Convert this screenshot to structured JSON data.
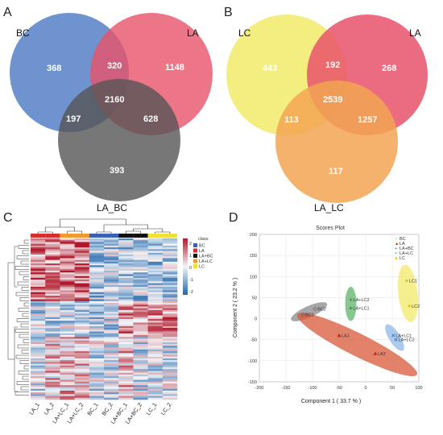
{
  "panels": {
    "a": "A",
    "b": "B",
    "c": "C",
    "d": "D"
  },
  "venn_a": {
    "sets": [
      "BC",
      "LA",
      "LA_BC"
    ],
    "colors": [
      "#4a78c2",
      "#e8526a",
      "#555555"
    ],
    "counts": {
      "only_1": "368",
      "only_2": "1148",
      "only_3": "393",
      "s12": "320",
      "s13": "197",
      "s23": "628",
      "s123": "2160"
    }
  },
  "venn_b": {
    "sets": [
      "LC",
      "LA",
      "LA_LC"
    ],
    "colors": [
      "#f2ea6a",
      "#e8526a",
      "#f2a552"
    ],
    "counts": {
      "only_1": "443",
      "only_2": "268",
      "only_3": "117",
      "s12": "192",
      "s13": "113",
      "s23": "1257",
      "s123": "2539"
    }
  },
  "heatmap": {
    "legend_title": "class",
    "classes": [
      {
        "name": "BC",
        "color": "#3b5fb5"
      },
      {
        "name": "LA",
        "color": "#d62d2d"
      },
      {
        "name": "LA+BC",
        "color": "#111111"
      },
      {
        "name": "LA+LC",
        "color": "#f29a2e"
      },
      {
        "name": "LC",
        "color": "#f2e03a"
      }
    ],
    "scale_ticks": [
      "2",
      "1",
      "0",
      "-1",
      "-2"
    ],
    "columns": [
      "LA_1",
      "LA_2",
      "LA+LC_1",
      "LA+LC_2",
      "BC_1",
      "BC_2",
      "LA+BC_1",
      "LA+BC_2",
      "LC_1",
      "LC_2"
    ]
  },
  "chart_data": {
    "type": "scatter",
    "title": "Scores Plot",
    "xlabel": "Component 1 ( 33.7 % )",
    "ylabel": "Component 2 ( 23.2 % )",
    "xlim": [
      -200,
      100
    ],
    "ylim": [
      -150,
      200
    ],
    "xticks": [
      "-200",
      "-150",
      "-100",
      "-50",
      "0",
      "50",
      "100"
    ],
    "yticks": [
      "200",
      "150",
      "100",
      "50",
      "0",
      "-50",
      "-100",
      "-150"
    ],
    "legend_position": "top-right",
    "series": [
      {
        "name": "BC",
        "color": "#888888",
        "marker": "circle",
        "points": [
          {
            "label": "BC1",
            "x": -118,
            "y": 10
          },
          {
            "label": "BC2",
            "x": -95,
            "y": 23
          }
        ]
      },
      {
        "name": "LA",
        "color": "#d63a1f",
        "marker": "triangle",
        "points": [
          {
            "label": "LA1",
            "x": -50,
            "y": -40
          },
          {
            "label": "LA2",
            "x": 18,
            "y": -83
          }
        ]
      },
      {
        "name": "LA+BC",
        "color": "#2e8b3a",
        "marker": "plus",
        "points": [
          {
            "label": "LA+LC2",
            "x": -28,
            "y": 45
          },
          {
            "label": "LA+LC1",
            "x": -28,
            "y": 25
          }
        ]
      },
      {
        "name": "LA+LC",
        "color": "#3a7fd0",
        "marker": "x",
        "points": [
          {
            "label": "LA+LC1",
            "x": 52,
            "y": -40
          },
          {
            "label": "LA+LC2",
            "x": 57,
            "y": -50
          }
        ]
      },
      {
        "name": "LC",
        "color": "#e8d82a",
        "marker": "diamond",
        "points": [
          {
            "label": "LC1",
            "x": 77,
            "y": 90
          },
          {
            "label": "LC2",
            "x": 82,
            "y": 30
          }
        ]
      }
    ]
  }
}
